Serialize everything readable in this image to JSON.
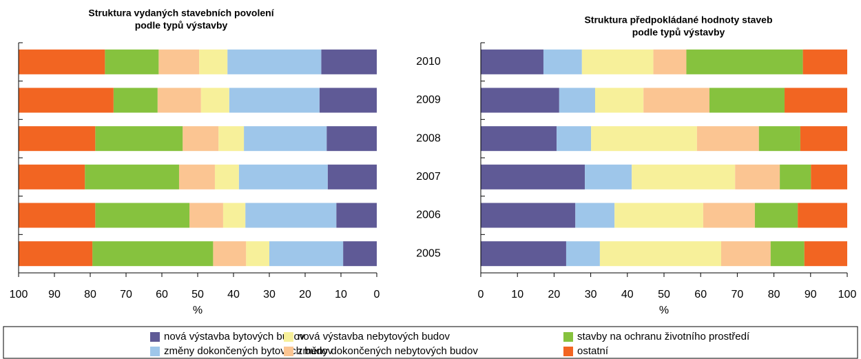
{
  "chart_data": [
    {
      "type": "stacked-bar-horizontal",
      "title": [
        "Struktura vydaných stavebních povolení",
        "podle typů výstavby"
      ],
      "categories": [
        "2010",
        "2009",
        "2008",
        "2007",
        "2006",
        "2005"
      ],
      "xlim": [
        0,
        100
      ],
      "x_reversed": true,
      "xticks": [
        0,
        10,
        20,
        30,
        40,
        50,
        60,
        70,
        80,
        90,
        100
      ],
      "xlabel": "%",
      "series": [
        {
          "name": "nová výstavba bytových budov",
          "color": "#5f5a96",
          "values": [
            15.5,
            16,
            14,
            13.7,
            11.3,
            9.4
          ]
        },
        {
          "name": "změny dokončených bytových budov",
          "color": "#9ec6ea",
          "values": [
            26.2,
            25.2,
            23.1,
            24.8,
            25.4,
            20.6
          ]
        },
        {
          "name": "nová výstavba nebytových budov",
          "color": "#f7f09a",
          "values": [
            7.9,
            7.9,
            7.1,
            6.7,
            6.2,
            6.5
          ]
        },
        {
          "name": "změny dokončených nebytových budov",
          "color": "#fbc592",
          "values": [
            11.3,
            12.1,
            10,
            10,
            9.4,
            9.2
          ]
        },
        {
          "name": "stavby na ochranu životního prostředí",
          "color": "#86c23e",
          "values": [
            15,
            12.3,
            24.4,
            26.3,
            26.3,
            33.7
          ]
        },
        {
          "name": "ostatní",
          "color": "#f26522",
          "values": [
            24.1,
            26.5,
            21.4,
            18.5,
            21.4,
            20.6
          ]
        }
      ]
    },
    {
      "type": "stacked-bar-horizontal",
      "title": [
        "Struktura předpokládané hodnoty staveb",
        "podle typů výstavby"
      ],
      "xlim": [
        0,
        100
      ],
      "x_reversed": false,
      "xticks": [
        0,
        10,
        20,
        30,
        40,
        50,
        60,
        70,
        80,
        90,
        100
      ],
      "xlabel": "%",
      "series": [
        {
          "values": [
            17.1,
            21.4,
            20.7,
            28.4,
            25.8,
            23.3
          ]
        },
        {
          "values": [
            10.5,
            9.8,
            9.4,
            12.8,
            10.7,
            9.2
          ]
        },
        {
          "values": [
            19.5,
            13.2,
            28.9,
            28.2,
            24.2,
            33.1
          ]
        },
        {
          "values": [
            9,
            18,
            16.9,
            12.2,
            14.1,
            13.5
          ]
        },
        {
          "values": [
            31.8,
            20.5,
            11.3,
            8.5,
            11.7,
            9.2
          ]
        },
        {
          "values": [
            12.1,
            17.1,
            12.8,
            9.9,
            13.5,
            11.7
          ]
        }
      ]
    }
  ]
}
